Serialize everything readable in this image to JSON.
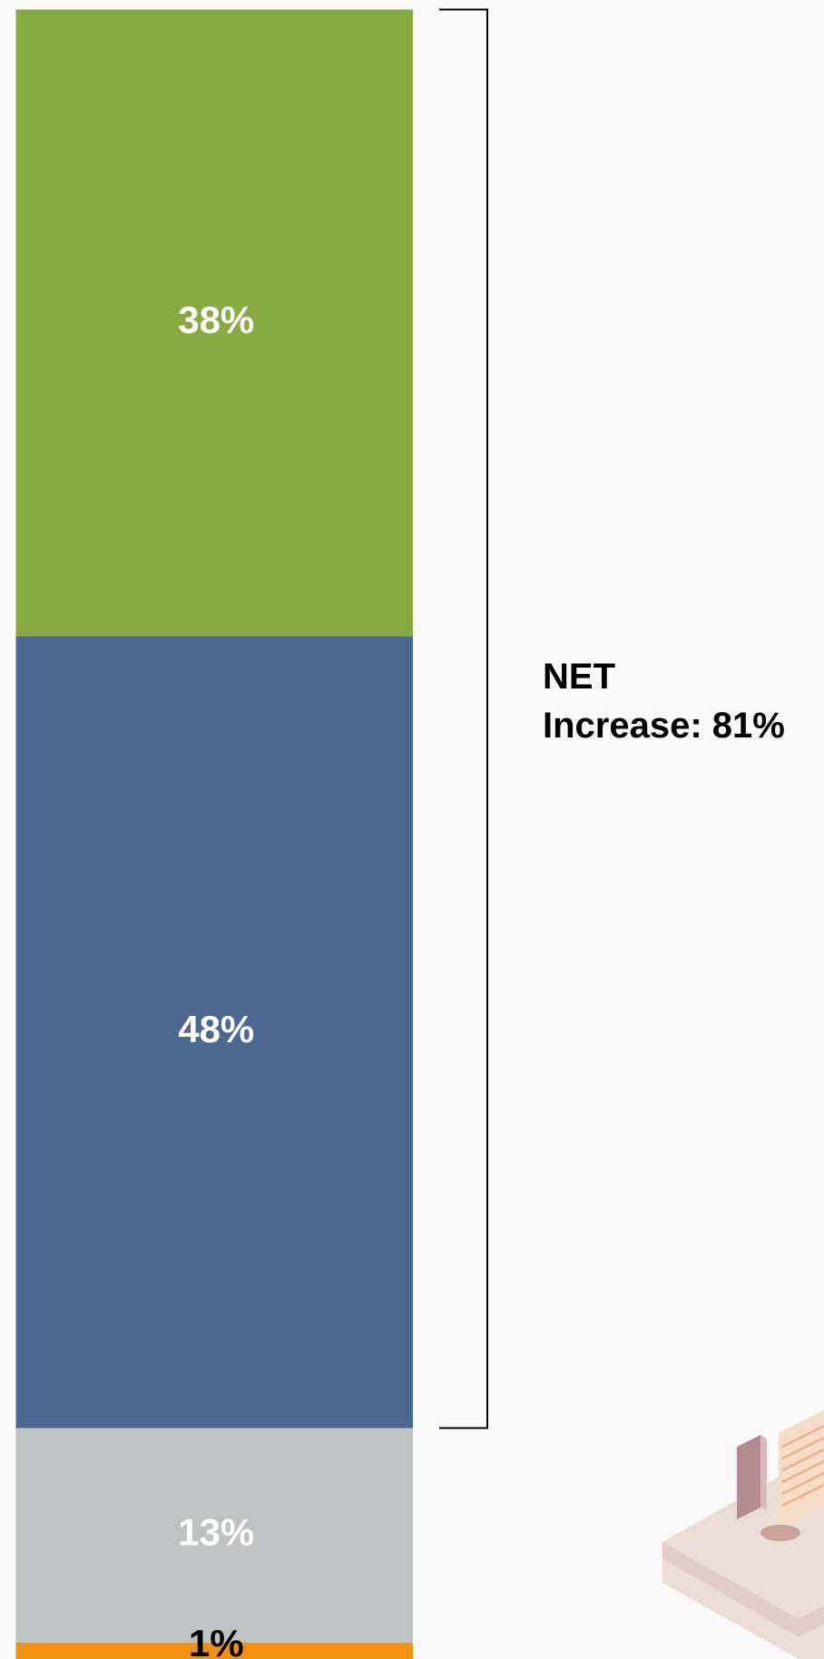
{
  "chart_data": {
    "type": "bar",
    "stacked": true,
    "categories": [
      null
    ],
    "series": [
      {
        "color": "#f0920f",
        "values": [
          1
        ],
        "value_labels": [
          "1%"
        ]
      },
      {
        "color": "#bfc2c2",
        "values": [
          13
        ],
        "value_labels": [
          "13%"
        ]
      },
      {
        "color": "#4a6890",
        "values": [
          48
        ],
        "value_labels": [
          "48%"
        ]
      },
      {
        "color": "#87aa41",
        "values": [
          38
        ],
        "value_labels": [
          "38%"
        ]
      }
    ],
    "ylim": [
      0,
      100
    ],
    "annotation": [
      "NET",
      "Increase: 81%"
    ]
  }
}
